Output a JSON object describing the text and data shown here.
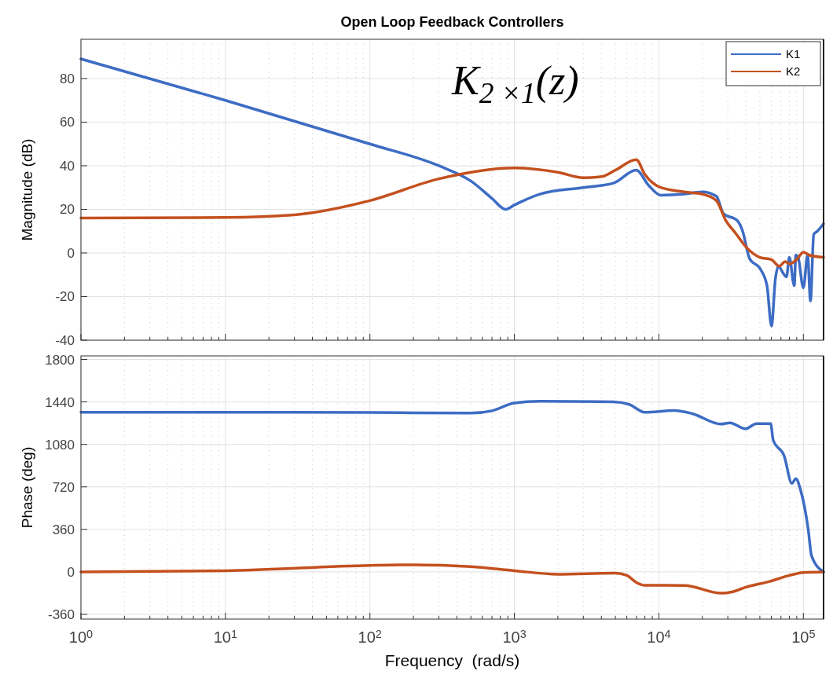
{
  "chart_data": [
    {
      "type": "line",
      "title": "Open Loop Feedback Controllers",
      "ylabel": "Magnitude (dB)",
      "log": "x",
      "grid": true,
      "legend": "top right",
      "tick_labels": "y",
      "annotations": [
        "K$_{2 ×1}$(z)"
      ],
      "xlim": [
        1,
        138000
      ],
      "ylim": [
        -40,
        98
      ],
      "yticks": [
        -40,
        -20,
        0,
        20,
        40,
        60,
        80
      ],
      "xticks": [
        {
          "value": 1,
          "label": null
        },
        {
          "value": 10,
          "label": null
        },
        {
          "value": 100,
          "label": null
        },
        {
          "value": 1000,
          "label": null
        },
        {
          "value": 10000,
          "label": null
        },
        {
          "value": 100000,
          "label": null
        }
      ],
      "series": [
        {
          "name": "K1",
          "color": "#3d6cc4",
          "x": [
            1,
            10,
            100,
            300,
            500,
            700,
            870,
            1000,
            1500,
            3000,
            4840,
            6970,
            8500,
            10300,
            15000,
            20000,
            25000,
            28000,
            34700,
            38000,
            42400,
            50500,
            56000,
            60200,
            64000,
            67300,
            72000,
            76400,
            80000,
            86500,
            88700,
            92000,
            100000,
            107000,
            112000,
            118000,
            125000,
            138000
          ],
          "values": [
            89,
            70,
            50,
            40,
            33,
            25,
            20,
            22,
            27,
            30,
            32,
            38,
            31,
            26.5,
            27,
            28,
            26,
            18,
            15,
            10,
            -2.5,
            -7.5,
            -15,
            -33.5,
            -12,
            -6,
            -9,
            -11,
            -2,
            -15,
            -1,
            -2,
            -16,
            -1,
            -22,
            8.6,
            10,
            13.4
          ]
        },
        {
          "name": "K2",
          "color": "#c4501e",
          "x": [
            1,
            10,
            30,
            100,
            300,
            1000,
            2000,
            3000,
            4000,
            5000,
            6970,
            8000,
            10300,
            15000,
            20000,
            25000,
            29000,
            34000,
            40700,
            50000,
            60000,
            68000,
            75000,
            80000,
            90000,
            100000,
            110000,
            138000
          ],
          "values": [
            16,
            16.3,
            17.5,
            24,
            34,
            39,
            37,
            34.5,
            35,
            38,
            42.8,
            36,
            30,
            28,
            27,
            24,
            15,
            9,
            2.3,
            -2,
            -3,
            -6,
            -4,
            -5,
            -3,
            0.4,
            -1,
            -2
          ]
        }
      ]
    },
    {
      "type": "line",
      "ylabel": "Phase (deg)",
      "xlabel": "Frequency  (rad/s)",
      "log": "x",
      "grid": true,
      "xlim": [
        1,
        138000
      ],
      "ylim": [
        -400,
        1830
      ],
      "yticks": [
        -360,
        0,
        360,
        720,
        1080,
        1440,
        1800
      ],
      "xticks": [
        {
          "value": 1,
          "label": "10$^{0}$"
        },
        {
          "value": 10,
          "label": "10$^{1}$"
        },
        {
          "value": 100,
          "label": "10$^{2}$"
        },
        {
          "value": 1000,
          "label": "10$^{3}$"
        },
        {
          "value": 10000,
          "label": "10$^{4}$"
        },
        {
          "value": 100000,
          "label": "10$^{5}$"
        }
      ],
      "series": [
        {
          "color": "#3d6cc4",
          "x": [
            1,
            10,
            100,
            500,
            700,
            1000,
            1500,
            4840,
            6230,
            8000,
            12700,
            17000,
            26900,
            31000,
            39800,
            47400,
            59400,
            61800,
            73600,
            83300,
            88700,
            95500,
            108000,
            114000,
            138000
          ],
          "values": [
            1352,
            1352,
            1350,
            1345,
            1365,
            1430,
            1445,
            1441,
            1419,
            1352,
            1367,
            1341,
            1252,
            1263,
            1212,
            1256,
            1256,
            1118,
            984,
            750,
            790,
            697,
            362,
            135,
            0
          ]
        },
        {
          "color": "#c4501e",
          "x": [
            1,
            10,
            100,
            200,
            500,
            1000,
            2000,
            5000,
            6000,
            7000,
            8000,
            15000,
            27000,
            32000,
            40000,
            59000,
            80000,
            100000,
            138000
          ],
          "values": [
            0,
            10,
            55,
            60,
            45,
            10,
            -20,
            -10,
            -30,
            -90,
            -114,
            -115,
            -181,
            -170,
            -130,
            -80,
            -30,
            -5,
            0
          ]
        }
      ]
    }
  ]
}
